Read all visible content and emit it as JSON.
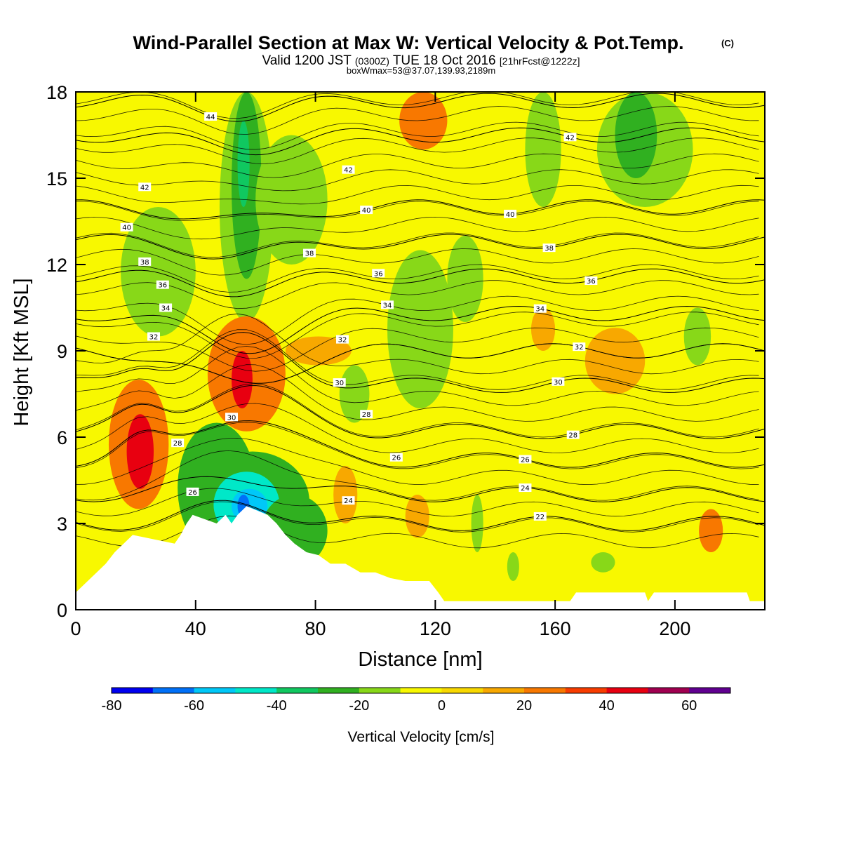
{
  "title": {
    "main": "Wind-Parallel Section at Max W: Vertical Velocity & Pot.Temp.",
    "copyright": "(C)",
    "valid_pre": "Valid 1200 JST",
    "valid_utc": "(0300Z)",
    "valid_date": "TUE 18 Oct 2016",
    "forecast": "[21hrFcst@1222z]",
    "box_info": "boxWmax=53@37.07,139.93,2189m"
  },
  "chart_data": {
    "type": "heatmap",
    "xlabel": "Distance [nm]",
    "ylabel": "Height [Kft MSL]",
    "xlim": [
      0,
      230
    ],
    "ylim": [
      0,
      18
    ],
    "xticks": [
      0,
      40,
      80,
      120,
      160,
      200
    ],
    "yticks": [
      0,
      3,
      6,
      9,
      12,
      15,
      18
    ],
    "fill_variable": "Vertical Velocity [cm/s]",
    "colorbar": {
      "title": "Vertical Velocity [cm/s]",
      "bounds": [
        -80,
        -70,
        -60,
        -50,
        -40,
        -30,
        -20,
        -10,
        0,
        10,
        20,
        30,
        40,
        50,
        60,
        70
      ],
      "labels": [
        -80,
        -60,
        -40,
        -20,
        0,
        20,
        40,
        60
      ],
      "colors": [
        "#0000f0",
        "#0070f8",
        "#00c8f8",
        "#00e8c8",
        "#10c860",
        "#30b020",
        "#88d818",
        "#f8f800",
        "#f8d800",
        "#f8a800",
        "#f87800",
        "#f83c00",
        "#e80010",
        "#a00050",
        "#600090"
      ]
    },
    "cells": [
      {
        "x": [
          15,
          40
        ],
        "y": [
          9.5,
          14
        ],
        "w": -15
      },
      {
        "x": [
          24,
          30
        ],
        "y": [
          10.5,
          13
        ],
        "w": -20
      },
      {
        "x": [
          48,
          66
        ],
        "y": [
          10,
          18
        ],
        "w": -15
      },
      {
        "x": [
          52,
          62
        ],
        "y": [
          11.5,
          18
        ],
        "w": -25
      },
      {
        "x": [
          54,
          58
        ],
        "y": [
          14,
          17
        ],
        "w": -35
      },
      {
        "x": [
          60,
          84
        ],
        "y": [
          12,
          16.5
        ],
        "w": -15
      },
      {
        "x": [
          104,
          126
        ],
        "y": [
          7,
          12.5
        ],
        "w": -15
      },
      {
        "x": [
          124,
          136
        ],
        "y": [
          10,
          13
        ],
        "w": -15
      },
      {
        "x": [
          88,
          98
        ],
        "y": [
          6.5,
          8.5
        ],
        "w": -20
      },
      {
        "x": [
          150,
          162
        ],
        "y": [
          14,
          18
        ],
        "w": -15
      },
      {
        "x": [
          174,
          206
        ],
        "y": [
          14,
          18
        ],
        "w": -15
      },
      {
        "x": [
          180,
          194
        ],
        "y": [
          15,
          18
        ],
        "w": -25
      },
      {
        "x": [
          203,
          212
        ],
        "y": [
          8.5,
          10.5
        ],
        "w": -15
      },
      {
        "x": [
          11,
          31
        ],
        "y": [
          3.5,
          8
        ],
        "w": 25
      },
      {
        "x": [
          17,
          26
        ],
        "y": [
          4.2,
          6.8
        ],
        "w": 45
      },
      {
        "x": [
          44,
          70
        ],
        "y": [
          6.2,
          10.2
        ],
        "w": 25
      },
      {
        "x": [
          52,
          59
        ],
        "y": [
          7,
          9
        ],
        "w": 45
      },
      {
        "x": [
          70,
          92
        ],
        "y": [
          8.5,
          9.5
        ],
        "w": 15
      },
      {
        "x": [
          108,
          124
        ],
        "y": [
          16,
          18
        ],
        "w": 25
      },
      {
        "x": [
          170,
          190
        ],
        "y": [
          7.5,
          9.8
        ],
        "w": 15
      },
      {
        "x": [
          152,
          160
        ],
        "y": [
          9,
          10.5
        ],
        "w": 15
      },
      {
        "x": [
          208,
          216
        ],
        "y": [
          2,
          3.5
        ],
        "w": 25
      },
      {
        "x": [
          110,
          118
        ],
        "y": [
          2.5,
          4
        ],
        "w": 15
      },
      {
        "x": [
          86,
          94
        ],
        "y": [
          3,
          5
        ],
        "w": 15
      },
      {
        "x": [
          34,
          60
        ],
        "y": [
          2,
          6.5
        ],
        "w": -25
      },
      {
        "x": [
          40,
          78
        ],
        "y": [
          2,
          5.5
        ],
        "w": -30
      },
      {
        "x": [
          46,
          68
        ],
        "y": [
          2.5,
          4.8
        ],
        "w": -50
      },
      {
        "x": [
          52,
          64
        ],
        "y": [
          3,
          4.2
        ],
        "w": -55
      },
      {
        "x": [
          54,
          58
        ],
        "y": [
          3.2,
          4
        ],
        "w": -70
      },
      {
        "x": [
          62,
          84
        ],
        "y": [
          1.5,
          4
        ],
        "w": -25
      },
      {
        "x": [
          132,
          136
        ],
        "y": [
          2,
          4
        ],
        "w": -15
      },
      {
        "x": [
          144,
          148
        ],
        "y": [
          1,
          2
        ],
        "w": -15
      },
      {
        "x": [
          172,
          180
        ],
        "y": [
          1.3,
          2
        ],
        "w": -15
      }
    ],
    "terrain": [
      [
        0,
        0.6
      ],
      [
        4,
        1.0
      ],
      [
        7,
        1.3
      ],
      [
        10,
        1.6
      ],
      [
        13,
        2.0
      ],
      [
        16,
        2.3
      ],
      [
        19,
        2.6
      ],
      [
        33,
        2.3
      ],
      [
        35,
        2.6
      ],
      [
        37,
        3.0
      ],
      [
        39,
        3.3
      ],
      [
        47,
        3.0
      ],
      [
        50,
        3.3
      ],
      [
        52,
        3.0
      ],
      [
        54,
        3.3
      ],
      [
        57,
        3.6
      ],
      [
        64,
        3.3
      ],
      [
        67,
        3.0
      ],
      [
        70,
        2.6
      ],
      [
        73,
        2.3
      ],
      [
        77,
        2.0
      ],
      [
        81,
        1.9
      ],
      [
        85,
        1.6
      ],
      [
        90,
        1.6
      ],
      [
        95,
        1.3
      ],
      [
        100,
        1.3
      ],
      [
        105,
        1.1
      ],
      [
        110,
        1.0
      ],
      [
        118,
        1.0
      ],
      [
        121,
        0.6
      ],
      [
        123,
        0.3
      ],
      [
        165,
        0.3
      ],
      [
        167,
        0.6
      ],
      [
        190,
        0.6
      ],
      [
        191,
        0.3
      ],
      [
        193,
        0.6
      ],
      [
        224,
        0.6
      ],
      [
        225,
        0.3
      ],
      [
        230,
        0.3
      ]
    ],
    "isentropes": [
      {
        "label": "22",
        "y": 3.0,
        "label_x": 155
      },
      {
        "label": "24",
        "y": 4.0,
        "label_x": 150
      },
      {
        "label": "26",
        "y": 5.2,
        "label_x": 150
      },
      {
        "label": "28",
        "y": 6.2,
        "label_x": 166
      },
      {
        "label": "30",
        "y": 7.8,
        "label_x": 161
      },
      {
        "label": "32",
        "y": 9.0,
        "label_x": 168
      },
      {
        "label": "34",
        "y": 10.3,
        "label_x": 155
      },
      {
        "label": "36",
        "y": 11.6,
        "label_x": 172
      },
      {
        "label": "38",
        "y": 12.8,
        "label_x": 158
      },
      {
        "label": "40",
        "y": 14.0,
        "label_x": 145
      },
      {
        "label": "42",
        "y": 16.5,
        "label_x": 165
      },
      {
        "label": "44",
        "y": 17.7,
        "label_x": 45
      }
    ],
    "isentrope_extra_labels": [
      {
        "label": "26",
        "x": 39,
        "y": 4.1
      },
      {
        "label": "28",
        "x": 34,
        "y": 5.8
      },
      {
        "label": "30",
        "x": 52,
        "y": 6.7
      },
      {
        "label": "32",
        "x": 26,
        "y": 9.5
      },
      {
        "label": "34",
        "x": 30,
        "y": 10.5
      },
      {
        "label": "36",
        "x": 29,
        "y": 11.3
      },
      {
        "label": "38",
        "x": 23,
        "y": 12.1
      },
      {
        "label": "40",
        "x": 17,
        "y": 13.3
      },
      {
        "label": "42",
        "x": 23,
        "y": 14.7
      },
      {
        "label": "24",
        "x": 91,
        "y": 3.8
      },
      {
        "label": "26",
        "x": 107,
        "y": 5.3
      },
      {
        "label": "28",
        "x": 97,
        "y": 6.8
      },
      {
        "label": "30",
        "x": 88,
        "y": 7.9
      },
      {
        "label": "32",
        "x": 89,
        "y": 9.4
      },
      {
        "label": "34",
        "x": 104,
        "y": 10.6
      },
      {
        "label": "36",
        "x": 101,
        "y": 11.7
      },
      {
        "label": "38",
        "x": 78,
        "y": 12.4
      },
      {
        "label": "40",
        "x": 97,
        "y": 13.9
      },
      {
        "label": "42",
        "x": 91,
        "y": 15.3
      }
    ]
  }
}
